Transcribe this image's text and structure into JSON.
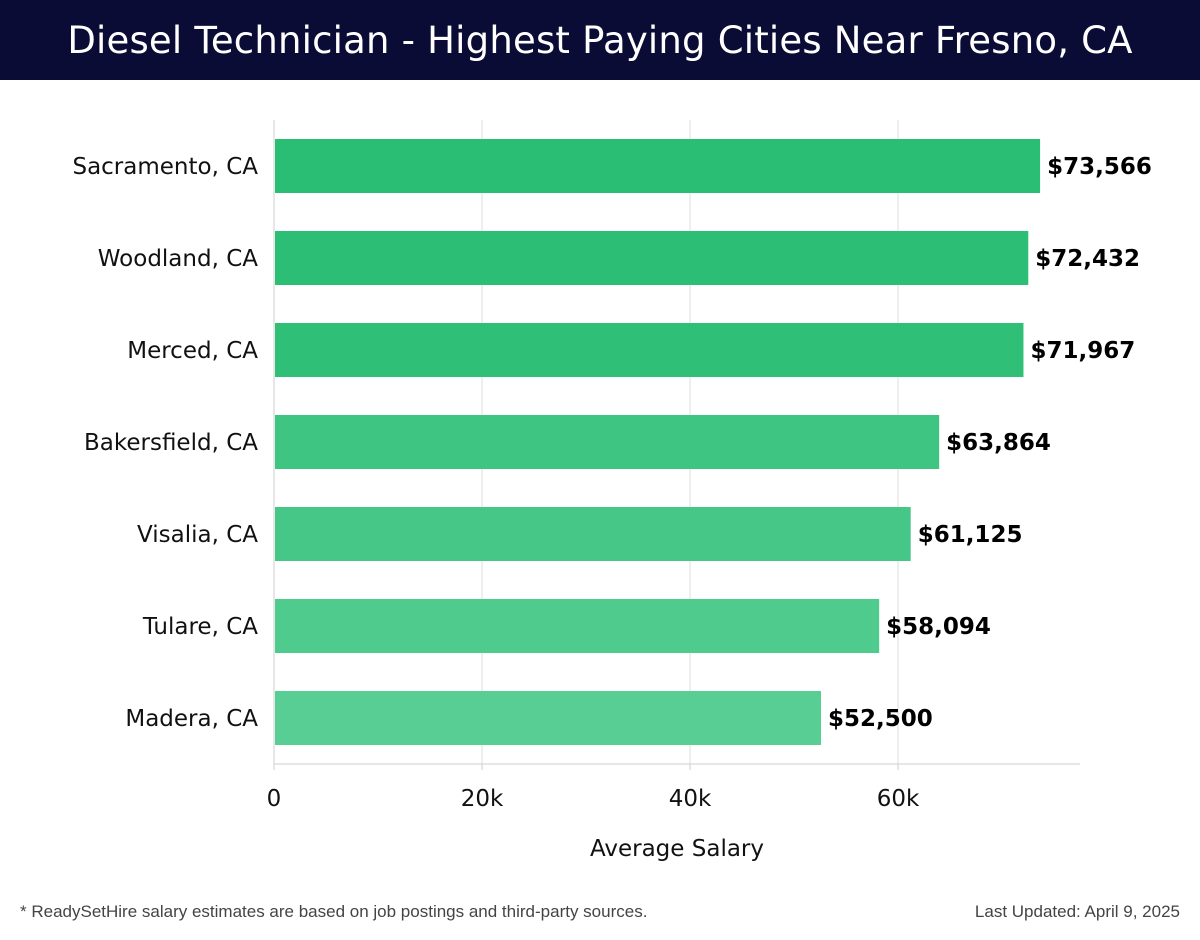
{
  "header": {
    "title": "Diesel Technician - Highest Paying Cities Near Fresno, CA"
  },
  "chart_data": {
    "type": "bar",
    "orientation": "horizontal",
    "categories": [
      "Sacramento, CA",
      "Woodland, CA",
      "Merced, CA",
      "Bakersfield, CA",
      "Visalia, CA",
      "Tulare, CA",
      "Madera, CA"
    ],
    "values": [
      73566,
      72432,
      71967,
      63864,
      61125,
      58094,
      52500
    ],
    "value_labels": [
      "$73,566",
      "$72,432",
      "$71,967",
      "$63,864",
      "$61,125",
      "$58,094",
      "$52,500"
    ],
    "bar_colors": [
      "#2abd74",
      "#2dbe76",
      "#2fbf77",
      "#3fc582",
      "#46c787",
      "#4ecb8d",
      "#58cd94"
    ],
    "xlabel": "Average Salary",
    "ylabel": "",
    "xlim": [
      0,
      77500
    ],
    "x_ticks": [
      0,
      20000,
      40000,
      60000
    ],
    "x_tick_labels": [
      "0",
      "20k",
      "40k",
      "60k"
    ],
    "grid": true
  },
  "footer": {
    "footnote": "* ReadySetHire salary estimates are based on job postings and third-party sources.",
    "updated": "Last Updated: April 9, 2025"
  }
}
